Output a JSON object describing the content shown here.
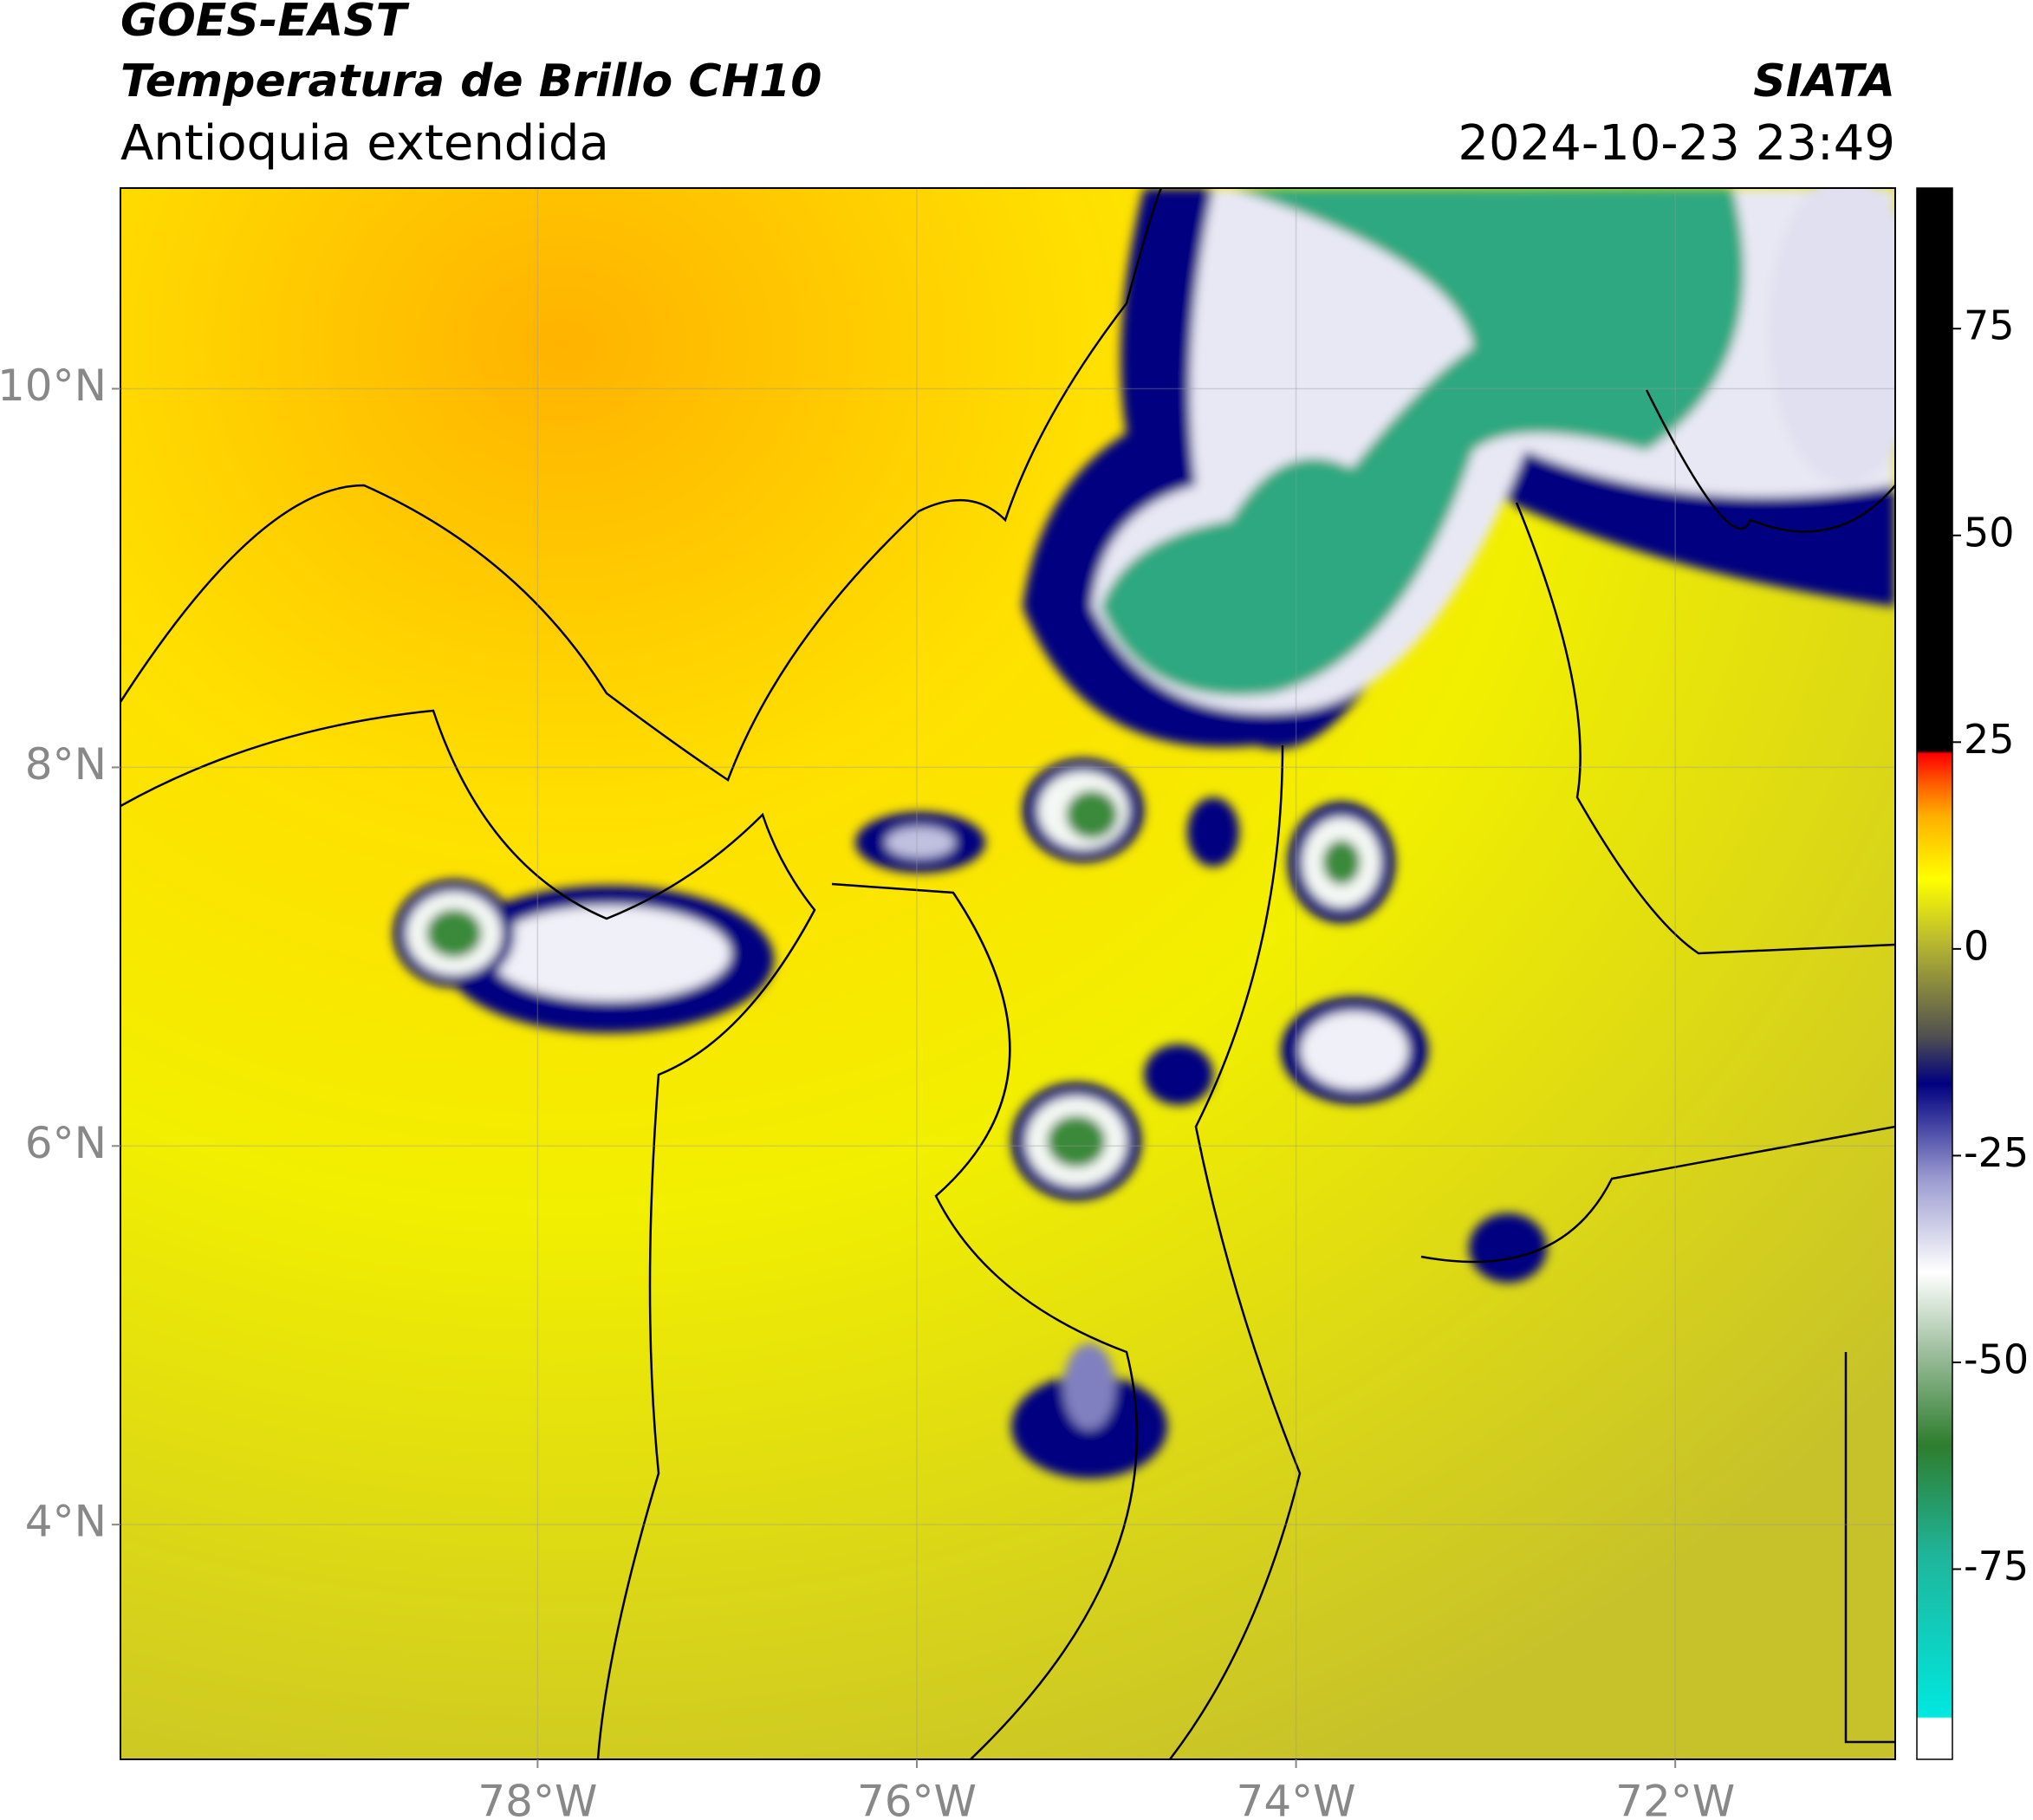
{
  "header": {
    "satellite": "GOES-EAST",
    "product": "Temperatura de Brillo CH10",
    "region": "Antioquia extendida",
    "agency": "SIATA",
    "datetime": "2024-10-23 23:49"
  },
  "map": {
    "xlim": [
      -80.2,
      -70.84
    ],
    "ylim": [
      2.76,
      11.06
    ],
    "xticks": [
      {
        "value": -78,
        "label": "78°W"
      },
      {
        "value": -76,
        "label": "76°W"
      },
      {
        "value": -74,
        "label": "74°W"
      },
      {
        "value": -72,
        "label": "72°W"
      }
    ],
    "yticks": [
      {
        "value": 4,
        "label": "4°N"
      },
      {
        "value": 6,
        "label": "6°N"
      },
      {
        "value": 8,
        "label": "8°N"
      },
      {
        "value": 10,
        "label": "10°N"
      }
    ],
    "grid": true
  },
  "colorbar": {
    "clim": [
      -98,
      92
    ],
    "ticks": [
      -75,
      -50,
      -25,
      0,
      25,
      50,
      75
    ]
  }
}
